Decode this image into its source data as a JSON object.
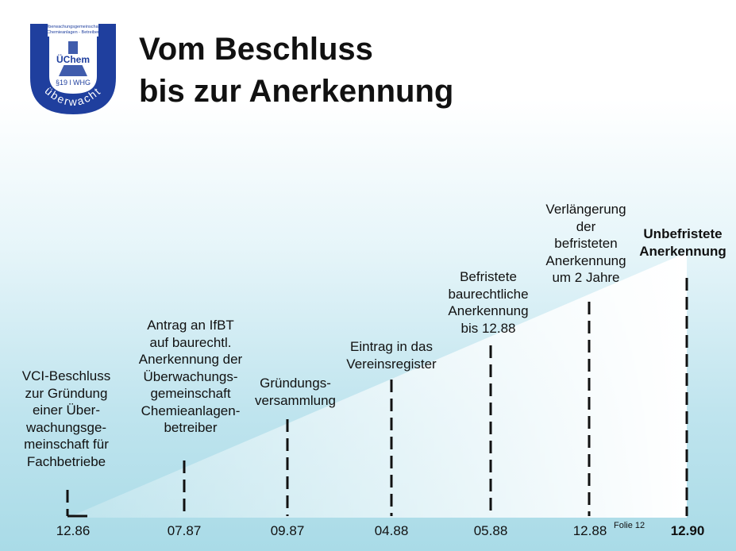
{
  "logo": {
    "top_text_1": "Überwachungsgemeinschaft",
    "top_text_2": "Chemieanlagen - Betreiber",
    "center_text": "ÜChem",
    "law_text": "§19 l WHG",
    "arc_text": "überwacht",
    "color": "#1f3f9e"
  },
  "title": {
    "line1": "Vom Beschluss",
    "line2": "bis zur Anerkennung"
  },
  "milestones": [
    {
      "date": "12.86",
      "label": "VCI-Beschluss\nzur Gründung\neiner Über-\nwachungsge-\nmeinschaft für\nFachbetriebe"
    },
    {
      "date": "07.87",
      "label": "Antrag an IfBT\nauf baurechtl.\nAnerkennung der\nÜberwachungs-\ngemeinschaft\nChemieanlagen-\nbetreiber"
    },
    {
      "date": "09.87",
      "label": "Gründungs-\nversammlung"
    },
    {
      "date": "04.88",
      "label": "Eintrag in das\nVereinsregister"
    },
    {
      "date": "05.88",
      "label": "Befristete\nbaurechtliche\nAnerkennung\nbis 12.88"
    },
    {
      "date": "12.88",
      "label": "Verlängerung\nder\nbefristeten\nAnerkennung\num 2 Jahre"
    },
    {
      "date": "12.90",
      "label": "Unbefristete\nAnerkennung"
    }
  ],
  "footer": {
    "slide": "Folie 12"
  },
  "colors": {
    "marker": "#111111",
    "wedge_top": "#ffffff"
  }
}
